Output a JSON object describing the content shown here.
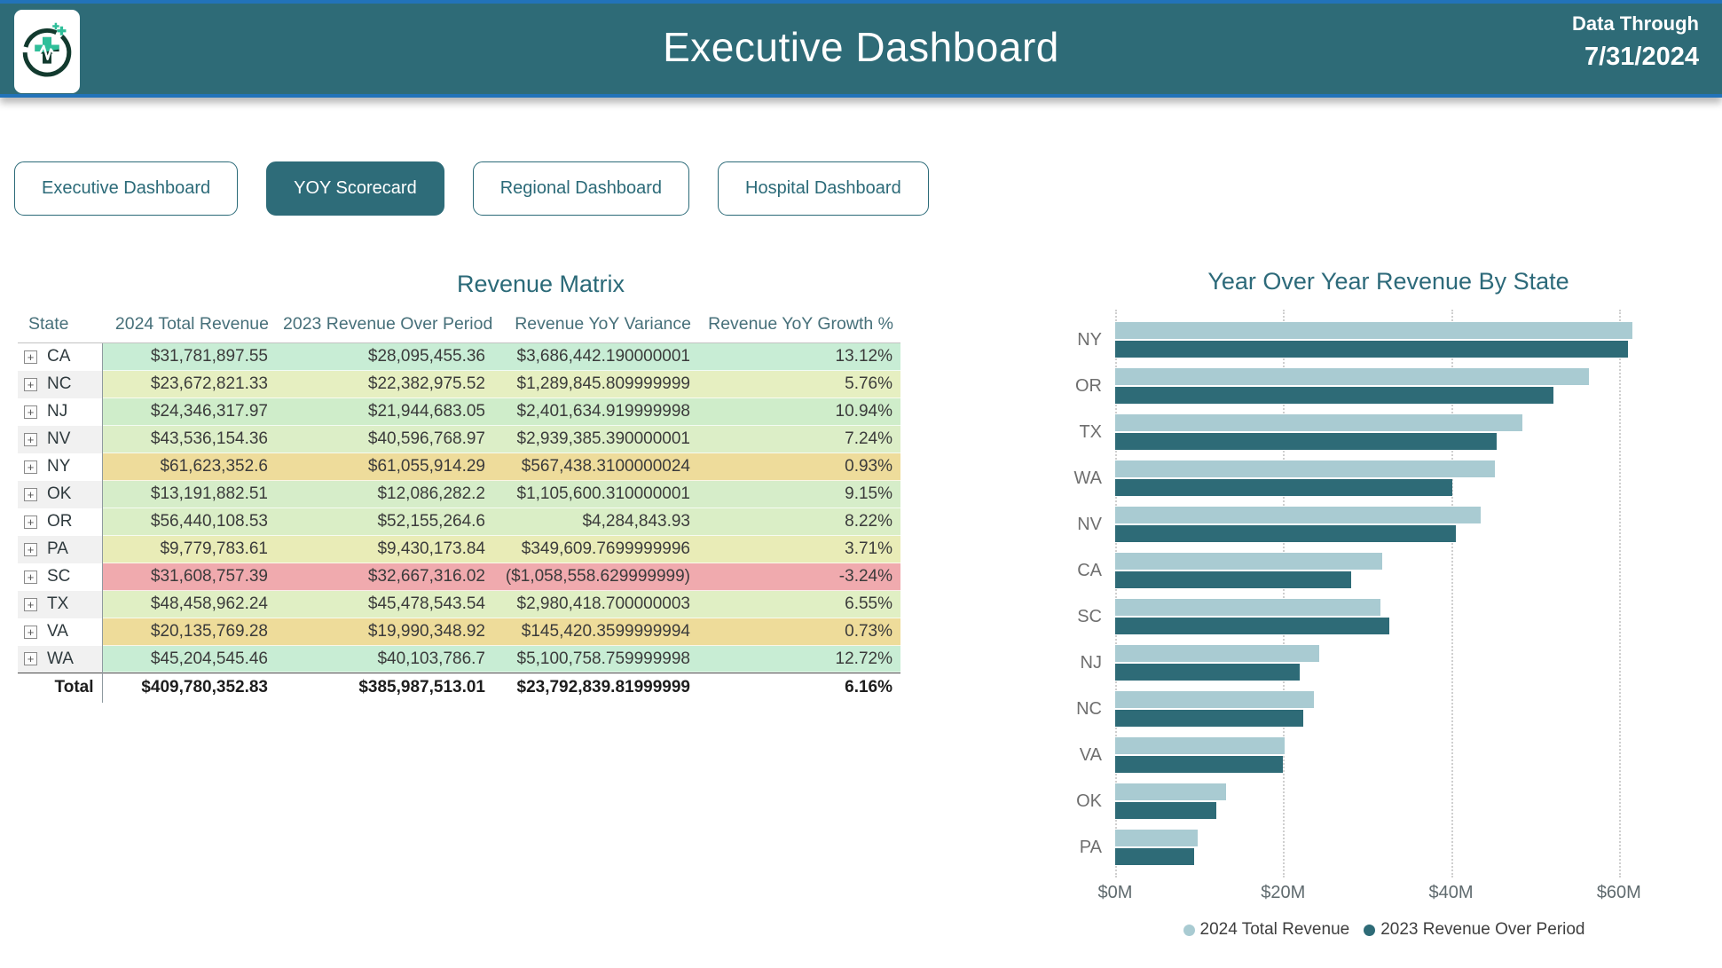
{
  "header": {
    "title": "Executive Dashboard",
    "data_through_label": "Data Through",
    "data_through_date": "7/31/2024"
  },
  "nav": {
    "items": [
      {
        "label": "Executive Dashboard",
        "active": false
      },
      {
        "label": "YOY Scorecard",
        "active": true
      },
      {
        "label": "Regional Dashboard",
        "active": false
      },
      {
        "label": "Hospital Dashboard",
        "active": false
      }
    ]
  },
  "matrix": {
    "title": "Revenue Matrix",
    "columns": [
      "State",
      "2024 Total Revenue",
      "2023 Revenue Over Period",
      "Revenue YoY Variance",
      "Revenue YoY Growth %"
    ],
    "rows": [
      {
        "state": "CA",
        "rev2024": "$31,781,897.55",
        "rev2023": "$28,095,455.36",
        "variance": "$3,686,442.190000001",
        "growth": "13.12%",
        "row_color": "#c8edd5"
      },
      {
        "state": "NC",
        "rev2024": "$23,672,821.33",
        "rev2023": "$22,382,975.52",
        "variance": "$1,289,845.809999999",
        "growth": "5.76%",
        "row_color": "#e6efc1"
      },
      {
        "state": "NJ",
        "rev2024": "$24,346,317.97",
        "rev2023": "$21,944,683.05",
        "variance": "$2,401,634.919999998",
        "growth": "10.94%",
        "row_color": "#cfedca"
      },
      {
        "state": "NV",
        "rev2024": "$43,536,154.36",
        "rev2023": "$40,596,768.97",
        "variance": "$2,939,385.390000001",
        "growth": "7.24%",
        "row_color": "#dceec7"
      },
      {
        "state": "NY",
        "rev2024": "$61,623,352.6",
        "rev2023": "$61,055,914.29",
        "variance": "$567,438.3100000024",
        "growth": "0.93%",
        "row_color": "#eedc9b"
      },
      {
        "state": "OK",
        "rev2024": "$13,191,882.51",
        "rev2023": "$12,086,282.2",
        "variance": "$1,105,600.310000001",
        "growth": "9.15%",
        "row_color": "#d6edc9"
      },
      {
        "state": "OR",
        "rev2024": "$56,440,108.53",
        "rev2023": "$52,155,264.6",
        "variance": "$4,284,843.93",
        "growth": "8.22%",
        "row_color": "#daeec6"
      },
      {
        "state": "PA",
        "rev2024": "$9,779,783.61",
        "rev2023": "$9,430,173.84",
        "variance": "$349,609.7699999996",
        "growth": "3.71%",
        "row_color": "#e9ecb7"
      },
      {
        "state": "SC",
        "rev2024": "$31,608,757.39",
        "rev2023": "$32,667,316.02",
        "variance": "($1,058,558.629999999)",
        "growth": "-3.24%",
        "row_color": "#f0aaae"
      },
      {
        "state": "TX",
        "rev2024": "$48,458,962.24",
        "rev2023": "$45,478,543.54",
        "variance": "$2,980,418.700000003",
        "growth": "6.55%",
        "row_color": "#e0efc4"
      },
      {
        "state": "VA",
        "rev2024": "$20,135,769.28",
        "rev2023": "$19,990,348.92",
        "variance": "$145,420.3599999994",
        "growth": "0.73%",
        "row_color": "#eedc9a"
      },
      {
        "state": "WA",
        "rev2024": "$45,204,545.46",
        "rev2023": "$40,103,786.7",
        "variance": "$5,100,758.759999998",
        "growth": "12.72%",
        "row_color": "#c8edd4"
      }
    ],
    "total": {
      "label": "Total",
      "rev2024": "$409,780,352.83",
      "rev2023": "$385,987,513.01",
      "variance": "$23,792,839.81999999",
      "growth": "6.16%"
    }
  },
  "chart_data": {
    "type": "bar",
    "orientation": "horizontal",
    "title": "Year Over Year Revenue By State",
    "categories": [
      "NY",
      "OR",
      "TX",
      "WA",
      "NV",
      "CA",
      "SC",
      "NJ",
      "NC",
      "VA",
      "OK",
      "PA"
    ],
    "series": [
      {
        "name": "2024 Total Revenue",
        "color": "#a9cbd2",
        "values": [
          61.62,
          56.44,
          48.46,
          45.2,
          43.54,
          31.78,
          31.61,
          24.35,
          23.67,
          20.14,
          13.19,
          9.78
        ]
      },
      {
        "name": "2023 Revenue Over Period",
        "color": "#2e6b77",
        "values": [
          61.06,
          52.16,
          45.48,
          40.1,
          40.6,
          28.1,
          32.67,
          21.94,
          22.38,
          19.99,
          12.09,
          9.43
        ]
      }
    ],
    "x_ticks": [
      "$0M",
      "$20M",
      "$40M",
      "$60M"
    ],
    "x_tick_values": [
      0,
      20,
      40,
      60
    ],
    "x_max": 65.3,
    "units": "millions USD",
    "legend_position": "bottom",
    "gridlines": "vertical-dotted",
    "sort": "descending by 2024 Total Revenue"
  },
  "colors": {
    "banner_teal": "#2e6b77",
    "banner_border_blue": "#2273b9",
    "accent_teal": "#2b6a78",
    "bar_2024": "#a9cbd2",
    "bar_2023": "#2e6b77",
    "negative_row": "#f0aaae",
    "logo_mint": "#2fbf9a",
    "logo_dark_green": "#123a2e"
  }
}
